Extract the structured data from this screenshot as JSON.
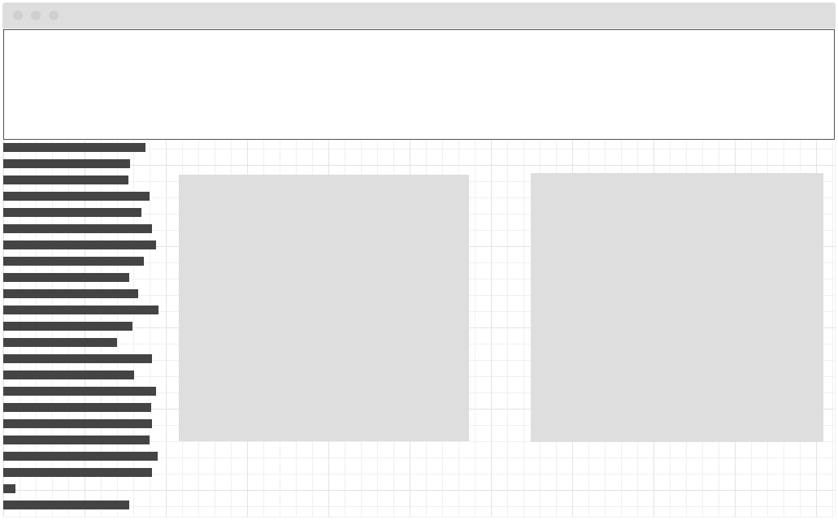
{
  "window": {
    "controls": [
      "close-dot",
      "minimize-dot",
      "maximize-dot"
    ]
  },
  "header_panel": {},
  "bar_list": {
    "fill_color": "#444444",
    "values": [
      0.875,
      0.78,
      0.77,
      0.9,
      0.85,
      0.915,
      0.94,
      0.865,
      0.775,
      0.83,
      0.955,
      0.795,
      0.7,
      0.915,
      0.805,
      0.94,
      0.91,
      0.915,
      0.9,
      0.95,
      0.915,
      0.075,
      0.775
    ]
  },
  "panels": {
    "left": {},
    "right": {}
  },
  "colors": {
    "titlebar": "#dedede",
    "panel_fill": "#dedede",
    "grid_major": "#e3e3e3",
    "grid_minor": "#f0f0f0"
  }
}
